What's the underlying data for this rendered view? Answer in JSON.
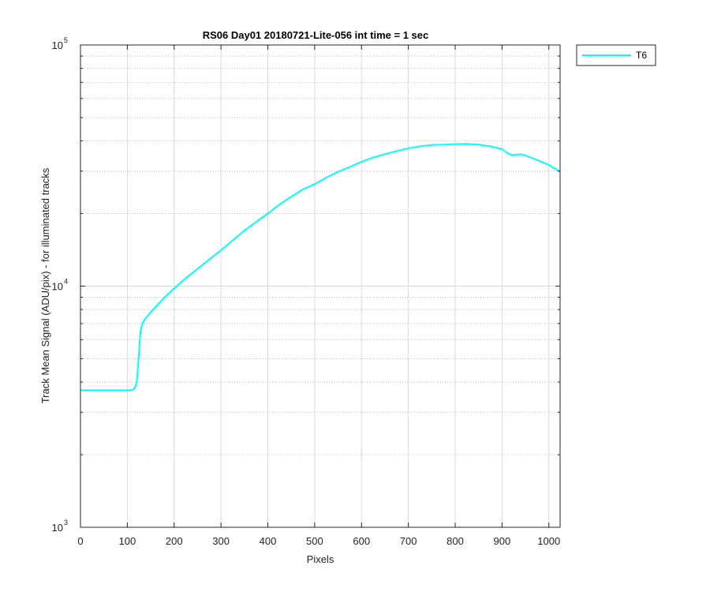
{
  "chart_data": {
    "type": "line",
    "title": "RS06 Day01 20180721-Lite-056 int time = 1 sec",
    "xlabel": "Pixels",
    "ylabel": "Track Mean Signal (ADU/pix) - for illuminated tracks",
    "xlim": [
      0,
      1024
    ],
    "ylim": [
      1000,
      100000
    ],
    "yscale": "log",
    "x_ticks": [
      0,
      100,
      200,
      300,
      400,
      500,
      600,
      700,
      800,
      900,
      1000
    ],
    "y_ticks": [
      {
        "base": "10",
        "exp": "3",
        "value": 1000
      },
      {
        "base": "10",
        "exp": "4",
        "value": 10000
      },
      {
        "base": "10",
        "exp": "5",
        "value": 100000
      }
    ],
    "grid": true,
    "legend_position": "outside-top-right",
    "series": [
      {
        "name": "T6",
        "color": "#00ffff",
        "x": [
          0,
          50,
          100,
          110,
          116,
          120,
          124,
          128,
          132,
          140,
          150,
          175,
          200,
          225,
          250,
          275,
          300,
          325,
          350,
          375,
          400,
          425,
          450,
          475,
          500,
          525,
          550,
          575,
          600,
          625,
          650,
          675,
          700,
          725,
          750,
          775,
          800,
          825,
          850,
          875,
          900,
          910,
          920,
          930,
          940,
          950,
          975,
          1000,
          1024
        ],
        "y": [
          3700,
          3700,
          3700,
          3710,
          3780,
          4000,
          5000,
          6500,
          7000,
          7400,
          7800,
          8800,
          9800,
          10800,
          11800,
          12900,
          14100,
          15500,
          17000,
          18500,
          20000,
          21800,
          23500,
          25200,
          26500,
          28200,
          29800,
          31200,
          32800,
          34200,
          35300,
          36300,
          37300,
          38000,
          38500,
          38600,
          38800,
          38900,
          38600,
          38000,
          37000,
          35800,
          35000,
          35100,
          35200,
          34800,
          33400,
          31800,
          29800
        ]
      }
    ]
  }
}
